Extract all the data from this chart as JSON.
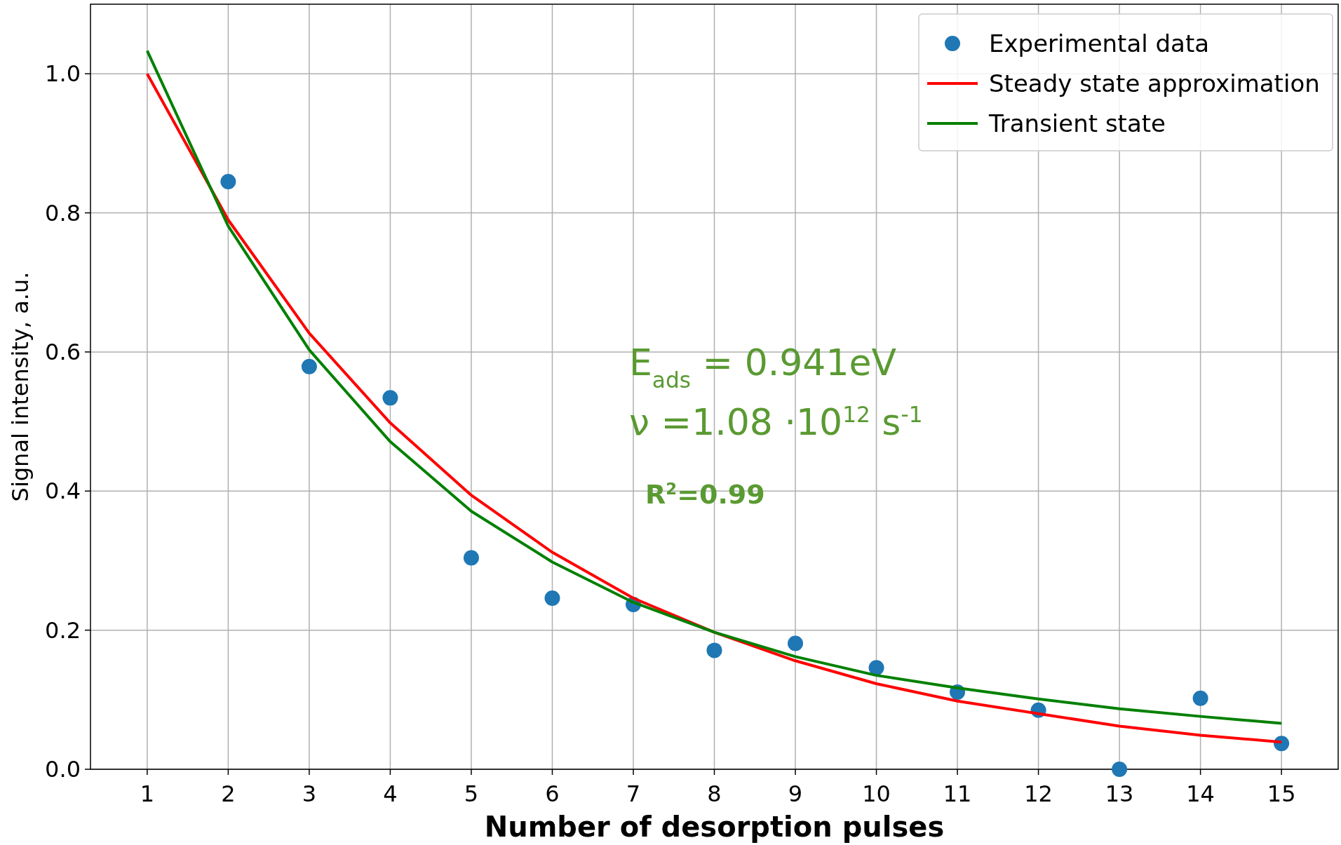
{
  "chart_data": {
    "type": "scatter",
    "xlabel": "Number of desorption pulses",
    "ylabel": "Signal intensity, a.u.",
    "xlim": [
      0.3,
      15.7
    ],
    "ylim": [
      0,
      1.1
    ],
    "xticks": [
      1,
      2,
      3,
      4,
      5,
      6,
      7,
      8,
      9,
      10,
      11,
      12,
      13,
      14,
      15
    ],
    "yticks": [
      {
        "value": 0,
        "label": "0.0"
      },
      {
        "value": 0.2,
        "label": "0.2"
      },
      {
        "value": 0.4,
        "label": "0.4"
      },
      {
        "value": 0.6,
        "label": "0.6"
      },
      {
        "value": 0.8,
        "label": "0.8"
      },
      {
        "value": 1,
        "label": "1.0"
      }
    ],
    "grid": true,
    "legend": "top right",
    "annotations": [
      "E$_{ads}$ = 0.941eV",
      "ν =1.08 ·10$^{12}$ s$^{-1}$",
      "R$^{2}$=0.99"
    ],
    "series": [
      {
        "name": "Experimental data",
        "marker": "circle",
        "color": "#1f77b4",
        "x": [
          2,
          3,
          4,
          5,
          6,
          7,
          8,
          9,
          10,
          11,
          12,
          13,
          14,
          15
        ],
        "values": [
          0.845,
          0.579,
          0.534,
          0.304,
          0.246,
          0.237,
          0.171,
          0.181,
          0.146,
          0.111,
          0.085,
          0.0,
          0.102,
          0.037
        ]
      },
      {
        "name": "Steady state approximation",
        "type": "line",
        "color": "#ff0000",
        "x": [
          1,
          2,
          3,
          4,
          5,
          6,
          7,
          8,
          9,
          10,
          11,
          12,
          13,
          14,
          15
        ],
        "values": [
          1.0,
          0.79,
          0.627,
          0.498,
          0.394,
          0.312,
          0.246,
          0.197,
          0.156,
          0.123,
          0.098,
          0.08,
          0.062,
          0.049,
          0.039
        ]
      },
      {
        "name": "Transient state",
        "type": "line",
        "color": "#008000",
        "x": [
          1,
          2,
          3,
          4,
          5,
          6,
          7,
          8,
          9,
          10,
          11,
          12,
          13,
          14,
          15
        ],
        "values": [
          1.033,
          0.781,
          0.603,
          0.471,
          0.371,
          0.298,
          0.24,
          0.197,
          0.162,
          0.135,
          0.117,
          0.101,
          0.087,
          0.076,
          0.066
        ]
      }
    ]
  }
}
